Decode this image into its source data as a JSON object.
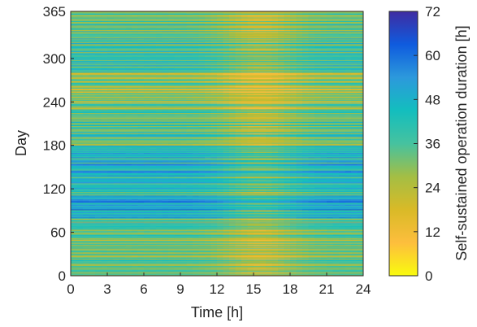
{
  "chart_data": {
    "type": "heatmap",
    "xlabel": "Time [h]",
    "ylabel": "Day",
    "x_ticks": [
      "0",
      "3",
      "6",
      "9",
      "12",
      "15",
      "18",
      "21",
      "24"
    ],
    "y_ticks": [
      "0",
      "60",
      "120",
      "180",
      "240",
      "300",
      "365"
    ],
    "xlim": [
      0,
      24
    ],
    "ylim": [
      0,
      365
    ],
    "colorbar": {
      "label": "Self-sustained operation duration [h]",
      "ticks": [
        "0",
        "12",
        "24",
        "36",
        "48",
        "60",
        "72"
      ],
      "range": [
        0,
        72
      ],
      "colormap": "parula",
      "colors": [
        "#f9fb0e",
        "#fdbe3d",
        "#d9ba27",
        "#a4be44",
        "#46c29f",
        "#13bebe",
        "#2c99dc",
        "#0f5bde",
        "#3f2ca2"
      ]
    },
    "approx_daily_baseline_hours": [
      {
        "day_start": 0,
        "day_end": 20,
        "hours": 34
      },
      {
        "day_start": 20,
        "day_end": 60,
        "hours": 33
      },
      {
        "day_start": 60,
        "day_end": 80,
        "hours": 38
      },
      {
        "day_start": 80,
        "day_end": 110,
        "hours": 52
      },
      {
        "day_start": 110,
        "day_end": 150,
        "hours": 44
      },
      {
        "day_start": 150,
        "day_end": 180,
        "hours": 46
      },
      {
        "day_start": 180,
        "day_end": 230,
        "hours": 36
      },
      {
        "day_start": 230,
        "day_end": 280,
        "hours": 29
      },
      {
        "day_start": 280,
        "day_end": 320,
        "hours": 38
      },
      {
        "day_start": 320,
        "day_end": 365,
        "hours": 36
      }
    ],
    "midday_dip_hours": 14
  }
}
